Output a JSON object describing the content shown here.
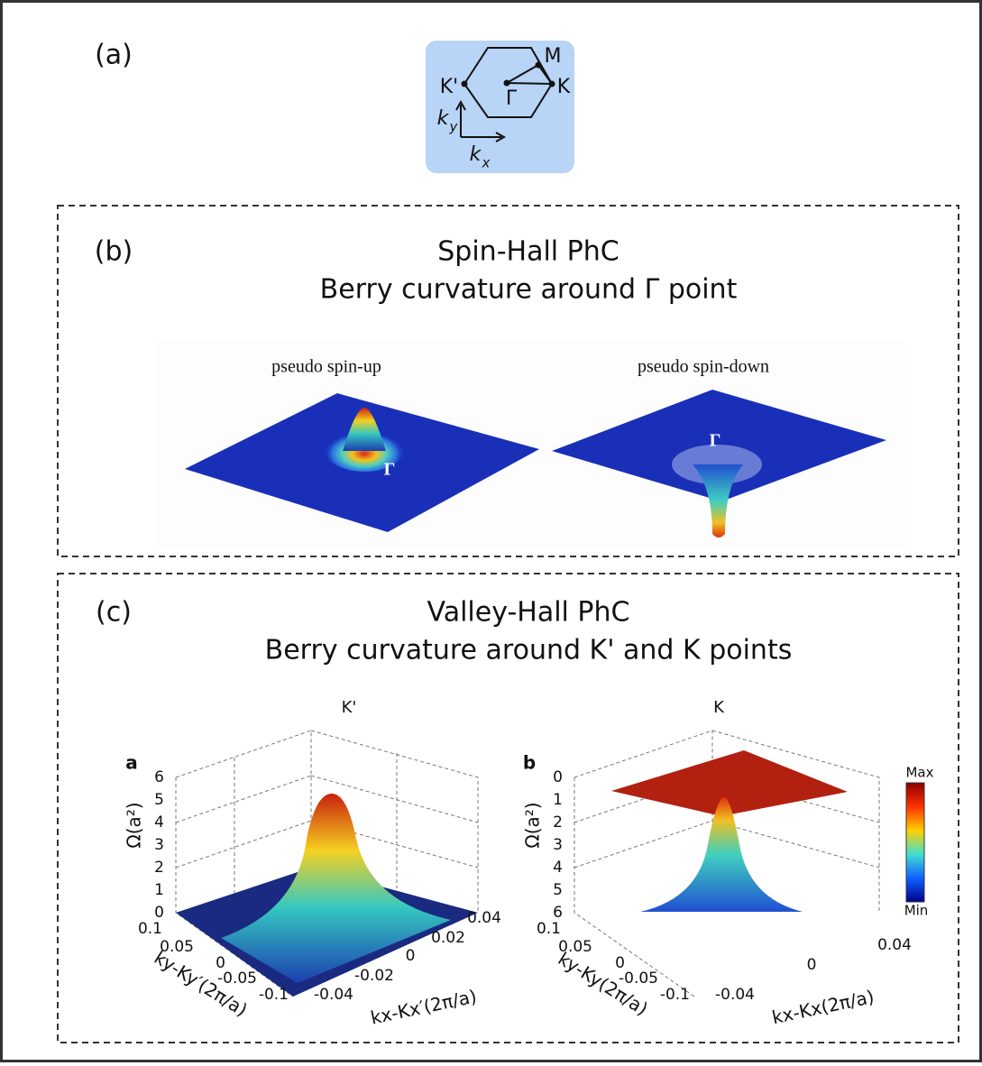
{
  "panel_a": {
    "label": "(a)",
    "points": {
      "M": "M",
      "K_prime": "K'",
      "K": "K",
      "Gamma": "Γ"
    },
    "ky": {
      "base": "k",
      "sub": "y"
    },
    "kx": {
      "base": "k",
      "sub": "x"
    }
  },
  "panel_b": {
    "label": "(b)",
    "title": [
      "Spin-Hall PhC",
      "Berry curvature around Γ point"
    ],
    "plots": [
      {
        "title": "pseudo spin-up",
        "point": "Γ"
      },
      {
        "title": "pseudo spin-down",
        "point": "Γ"
      }
    ]
  },
  "panel_c": {
    "label": "(c)",
    "title": [
      "Valley-Hall PhC",
      "Berry curvature around K' and K points"
    ],
    "plots": [
      {
        "header": "K'",
        "tag": "a",
        "z_label": "Ω(a²)",
        "z_ticks": [
          "6",
          "5",
          "4",
          "3",
          "2",
          "1",
          "0"
        ],
        "y_ticks": [
          "0.1",
          "0.05",
          "0",
          "-0.05",
          "-0.1"
        ],
        "x_ticks": [
          "-0.04",
          "-0.02",
          "0",
          "0.02",
          "0.04"
        ],
        "y_label": "ky-Ky′(2π/a)",
        "x_label": "kx-Kx′(2π/a)"
      },
      {
        "header": "K",
        "tag": "b",
        "z_label": "Ω(a²)",
        "z_ticks": [
          "0",
          "1",
          "2",
          "3",
          "4",
          "5",
          "6"
        ],
        "y_ticks": [
          "0.1",
          "0.05",
          "0",
          "-0.05",
          "-0.1"
        ],
        "x_ticks": [
          "-0.04",
          "0",
          "0.04"
        ],
        "y_label": "ky-Ky(2π/a)",
        "x_label": "kx-Kx(2π/a)",
        "colorbar": {
          "max": "Max",
          "min": "Min"
        }
      }
    ]
  }
}
